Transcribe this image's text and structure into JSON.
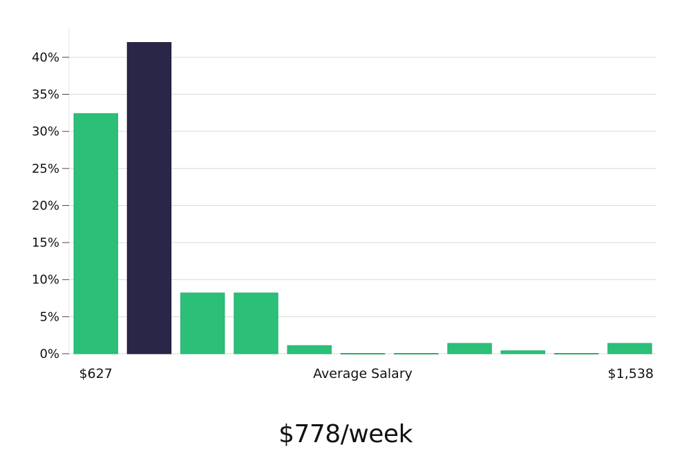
{
  "chart_data": {
    "type": "bar",
    "title": "",
    "xlabel": "Average Salary",
    "ylabel": "",
    "x_range_labels": {
      "min": "$627",
      "max": "$1,538"
    },
    "bin_count": 11,
    "values": [
      32.4,
      42.0,
      8.2,
      8.2,
      1.1,
      0.05,
      0.05,
      1.4,
      0.4,
      0.05,
      1.4
    ],
    "highlight_index": 1,
    "ylim": [
      0,
      44
    ],
    "yticks": [
      0,
      5,
      10,
      15,
      20,
      25,
      30,
      35,
      40
    ],
    "ytick_labels": [
      "0%",
      "5%",
      "10%",
      "15%",
      "20%",
      "25%",
      "30%",
      "35%",
      "40%"
    ],
    "grid": true,
    "legend": "none",
    "colors": {
      "bar": "#2bbf78",
      "highlight": "#2a2647",
      "grid": "#d9d9d9",
      "axis": "#e6e6e6"
    }
  },
  "headline": "$778/week"
}
